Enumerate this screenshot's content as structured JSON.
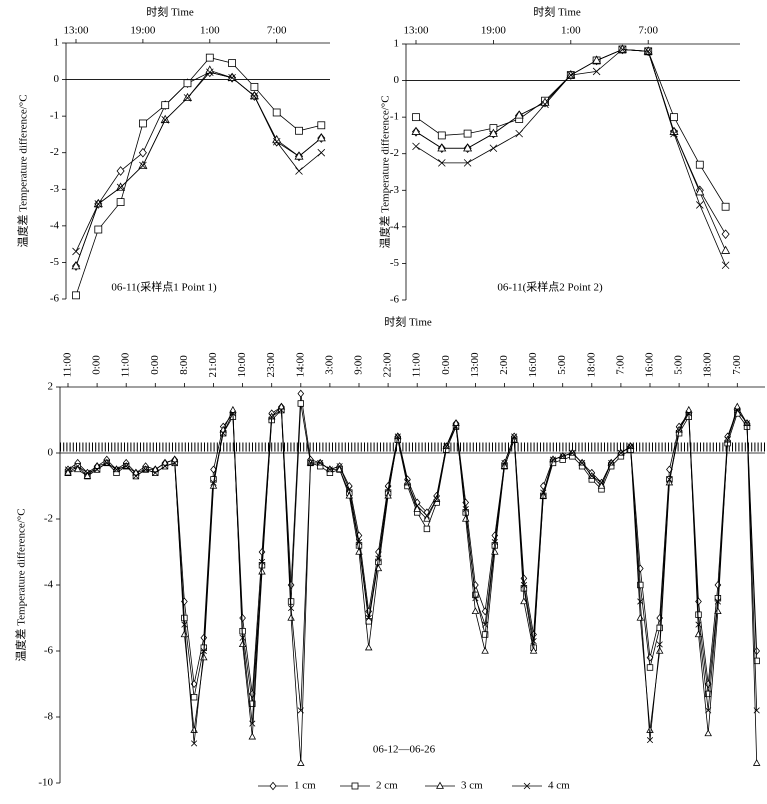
{
  "chart_data": [
    {
      "type": "line",
      "x_label": "时刻 Time",
      "y_label": "温度差 Temperature difference/°C",
      "annotation": "06-11(采样点1 Point 1)",
      "categories": [
        "13:00",
        null,
        null,
        "19:00",
        null,
        null,
        "1:00",
        null,
        null,
        "7:00",
        null,
        null
      ],
      "ylim": [
        -6,
        1
      ],
      "yticks": [
        -6,
        -5,
        -4,
        -3,
        -2,
        -1,
        0,
        1
      ],
      "series": [
        {
          "marker": "diamond",
          "color": "#000000",
          "values": [
            -5.1,
            -3.4,
            -2.5,
            -2.0,
            -0.7,
            -0.1,
            0.2,
            0.05,
            -0.45,
            -1.7,
            -2.1,
            -1.6
          ]
        },
        {
          "marker": "square",
          "color": "#000000",
          "values": [
            -5.9,
            -4.1,
            -3.35,
            -1.2,
            -0.7,
            -0.1,
            0.6,
            0.45,
            -0.2,
            -0.9,
            -1.4,
            -1.25
          ]
        },
        {
          "marker": "triangle",
          "color": "#000000",
          "values": [
            -5.1,
            -3.4,
            -2.95,
            -2.35,
            -1.1,
            -0.5,
            0.25,
            0.05,
            -0.45,
            -1.65,
            -2.1,
            -1.6
          ]
        },
        {
          "marker": "x",
          "color": "#000000",
          "values": [
            -4.7,
            -3.4,
            -2.95,
            -2.35,
            -1.1,
            -0.5,
            0.2,
            0.05,
            -0.45,
            -1.7,
            -2.5,
            -2.0
          ]
        }
      ]
    },
    {
      "type": "line",
      "x_label": "时刻 Time",
      "y_label": "温度差 Temperature difference/°C",
      "annotation": "06-11(采样点2 Point 2)",
      "categories": [
        "13:00",
        null,
        null,
        "19:00",
        null,
        null,
        "1:00",
        null,
        null,
        "7:00",
        null,
        null,
        null
      ],
      "ylim": [
        -6,
        1
      ],
      "yticks": [
        -6,
        -5,
        -4,
        -3,
        -2,
        -1,
        0,
        1
      ],
      "series": [
        {
          "marker": "diamond",
          "color": "#000000",
          "values": [
            -1.4,
            -1.85,
            -1.85,
            -1.45,
            -0.95,
            -0.6,
            0.15,
            0.55,
            0.85,
            0.8,
            -1.4,
            -3.0,
            -4.2
          ]
        },
        {
          "marker": "square",
          "color": "#000000",
          "values": [
            -1.0,
            -1.5,
            -1.45,
            -1.3,
            -1.05,
            -0.55,
            0.15,
            0.55,
            0.85,
            0.8,
            -1.0,
            -2.3,
            -3.45
          ]
        },
        {
          "marker": "triangle",
          "color": "#000000",
          "values": [
            -1.4,
            -1.85,
            -1.85,
            -1.45,
            -0.95,
            -0.6,
            0.15,
            0.55,
            0.85,
            0.8,
            -1.4,
            -3.05,
            -4.65
          ]
        },
        {
          "marker": "x",
          "color": "#000000",
          "values": [
            -1.8,
            -2.25,
            -2.25,
            -1.85,
            -1.45,
            -0.65,
            0.15,
            0.25,
            0.85,
            0.8,
            -1.45,
            -3.4,
            -5.05
          ]
        }
      ]
    },
    {
      "type": "line",
      "x_label": "时刻 Time",
      "y_label": "温度差 Temperature difference/°C",
      "annotation": "06-12—06-26",
      "categories": [
        "11:00",
        null,
        null,
        "0:00",
        null,
        null,
        "11:00",
        null,
        null,
        "0:00",
        null,
        null,
        "8:00",
        null,
        null,
        "21:00",
        null,
        null,
        "10:00",
        null,
        null,
        "23:00",
        null,
        null,
        "14:00",
        null,
        null,
        "3:00",
        null,
        null,
        "9:00",
        null,
        null,
        "22:00",
        null,
        null,
        "11:00",
        null,
        null,
        "0:00",
        null,
        null,
        "13:00",
        null,
        null,
        "2:00",
        null,
        null,
        "16:00",
        null,
        null,
        "5:00",
        null,
        null,
        "18:00",
        null,
        null,
        "7:00",
        null,
        null,
        "16:00",
        null,
        null,
        "5:00",
        null,
        null,
        "18:00",
        null,
        null,
        "7:00",
        null,
        null
      ],
      "ylim": [
        -10,
        2
      ],
      "yticks": [
        -10,
        -8,
        -6,
        -4,
        -2,
        0,
        2
      ],
      "legend": "bottom",
      "series": [
        {
          "name": "1 cm",
          "marker": "diamond",
          "color": "#000000",
          "values": [
            -0.5,
            -0.3,
            -0.6,
            -0.4,
            -0.2,
            -0.5,
            -0.3,
            -0.6,
            -0.4,
            -0.5,
            -0.3,
            -0.2,
            -4.5,
            -7.0,
            -5.6,
            -0.5,
            0.8,
            1.2,
            -5.0,
            -7.3,
            -3.0,
            1.2,
            1.4,
            -4.0,
            1.8,
            -0.2,
            -0.3,
            -0.5,
            -0.4,
            -1.0,
            -2.5,
            -4.8,
            -3.0,
            -1.0,
            0.5,
            -0.8,
            -1.5,
            -1.8,
            -1.3,
            0.2,
            0.9,
            -1.5,
            -4.0,
            -4.8,
            -2.5,
            -0.3,
            0.5,
            -3.8,
            -5.5,
            -1.0,
            -0.2,
            -0.1,
            0.0,
            -0.3,
            -0.6,
            -0.9,
            -0.3,
            0.0,
            0.2,
            -3.5,
            -6.2,
            -5.0,
            -0.5,
            0.8,
            1.2,
            -4.5,
            -7.0,
            -4.0,
            0.5,
            1.3,
            0.9,
            -6.0
          ]
        },
        {
          "name": "2 cm",
          "marker": "square",
          "color": "#000000",
          "values": [
            -0.6,
            -0.4,
            -0.7,
            -0.5,
            -0.3,
            -0.6,
            -0.4,
            -0.7,
            -0.5,
            -0.6,
            -0.4,
            -0.3,
            -5.0,
            -7.4,
            -5.9,
            -0.8,
            0.6,
            1.1,
            -5.4,
            -7.6,
            -3.4,
            1.0,
            1.3,
            -4.5,
            1.5,
            -0.3,
            -0.4,
            -0.6,
            -0.5,
            -1.2,
            -2.8,
            -5.1,
            -3.3,
            -1.2,
            0.4,
            -1.0,
            -1.8,
            -2.3,
            -1.5,
            0.1,
            0.8,
            -1.8,
            -4.3,
            -5.5,
            -2.8,
            -0.4,
            0.4,
            -4.1,
            -5.9,
            -1.3,
            -0.3,
            -0.2,
            -0.1,
            -0.4,
            -0.8,
            -1.1,
            -0.4,
            -0.1,
            0.1,
            -4.0,
            -6.5,
            -5.3,
            -0.8,
            0.6,
            1.1,
            -4.9,
            -7.3,
            -4.4,
            0.3,
            1.2,
            0.8,
            -6.3
          ]
        },
        {
          "name": "3 cm",
          "marker": "triangle",
          "color": "#000000",
          "values": [
            -0.6,
            -0.5,
            -0.7,
            -0.4,
            -0.3,
            -0.5,
            -0.4,
            -0.6,
            -0.5,
            -0.5,
            -0.3,
            -0.2,
            -5.5,
            -8.4,
            -6.2,
            -1.0,
            0.7,
            1.3,
            -5.8,
            -8.6,
            -3.6,
            1.1,
            1.4,
            -5.0,
            -9.4,
            -0.3,
            -0.3,
            -0.5,
            -0.5,
            -1.3,
            -3.0,
            -5.9,
            -3.5,
            -1.3,
            0.5,
            -0.9,
            -1.7,
            -2.0,
            -1.4,
            0.2,
            0.9,
            -2.0,
            -4.8,
            -6.0,
            -3.0,
            -0.4,
            0.4,
            -4.5,
            -6.0,
            -1.3,
            -0.2,
            -0.1,
            0.0,
            -0.3,
            -0.7,
            -1.0,
            -0.3,
            0.0,
            0.2,
            -5.0,
            -8.4,
            -6.0,
            -0.9,
            0.7,
            1.3,
            -5.5,
            -8.5,
            -4.8,
            0.4,
            1.4,
            0.9,
            -9.4
          ]
        },
        {
          "name": "4 cm",
          "marker": "x",
          "color": "#000000",
          "values": [
            -0.5,
            -0.4,
            -0.6,
            -0.5,
            -0.3,
            -0.5,
            -0.4,
            -0.7,
            -0.5,
            -0.6,
            -0.4,
            -0.3,
            -5.2,
            -8.8,
            -6.0,
            -0.9,
            0.6,
            1.2,
            -5.6,
            -8.2,
            -3.3,
            1.1,
            1.3,
            -4.7,
            -7.8,
            -0.3,
            -0.3,
            -0.5,
            -0.4,
            -1.1,
            -2.7,
            -5.0,
            -3.2,
            -1.1,
            0.5,
            -0.9,
            -1.6,
            -1.9,
            -1.4,
            0.2,
            0.8,
            -1.7,
            -4.4,
            -5.2,
            -2.7,
            -0.3,
            0.5,
            -4.0,
            -5.7,
            -1.2,
            -0.2,
            -0.1,
            0.0,
            -0.3,
            -0.7,
            -0.9,
            -0.3,
            0.0,
            0.2,
            -4.5,
            -8.7,
            -5.8,
            -0.8,
            0.7,
            1.2,
            -5.2,
            -7.8,
            -4.5,
            0.4,
            1.3,
            0.9,
            -7.8
          ]
        }
      ]
    }
  ]
}
